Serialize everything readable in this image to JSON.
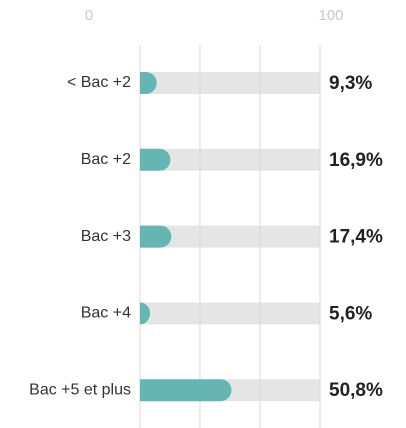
{
  "chart_data": {
    "type": "bar",
    "orientation": "horizontal",
    "categories": [
      "< Bac +2",
      "Bac +2",
      "Bac +3",
      "Bac +4",
      "Bac +5 et plus"
    ],
    "values": [
      9.3,
      16.9,
      17.4,
      5.6,
      50.8
    ],
    "value_labels": [
      "9,3%",
      "16,9%",
      "17,4%",
      "5,6%",
      "50,8%"
    ],
    "color": "#66b5b3",
    "track_color": "#e5e5e5",
    "xlim": [
      0,
      100
    ],
    "xticks": [
      {
        "value": 0,
        "label": "0"
      },
      {
        "value": 33.3,
        "label": null
      },
      {
        "value": 66.7,
        "label": null
      },
      {
        "value": 100,
        "label": "100"
      }
    ],
    "grid": true
  }
}
